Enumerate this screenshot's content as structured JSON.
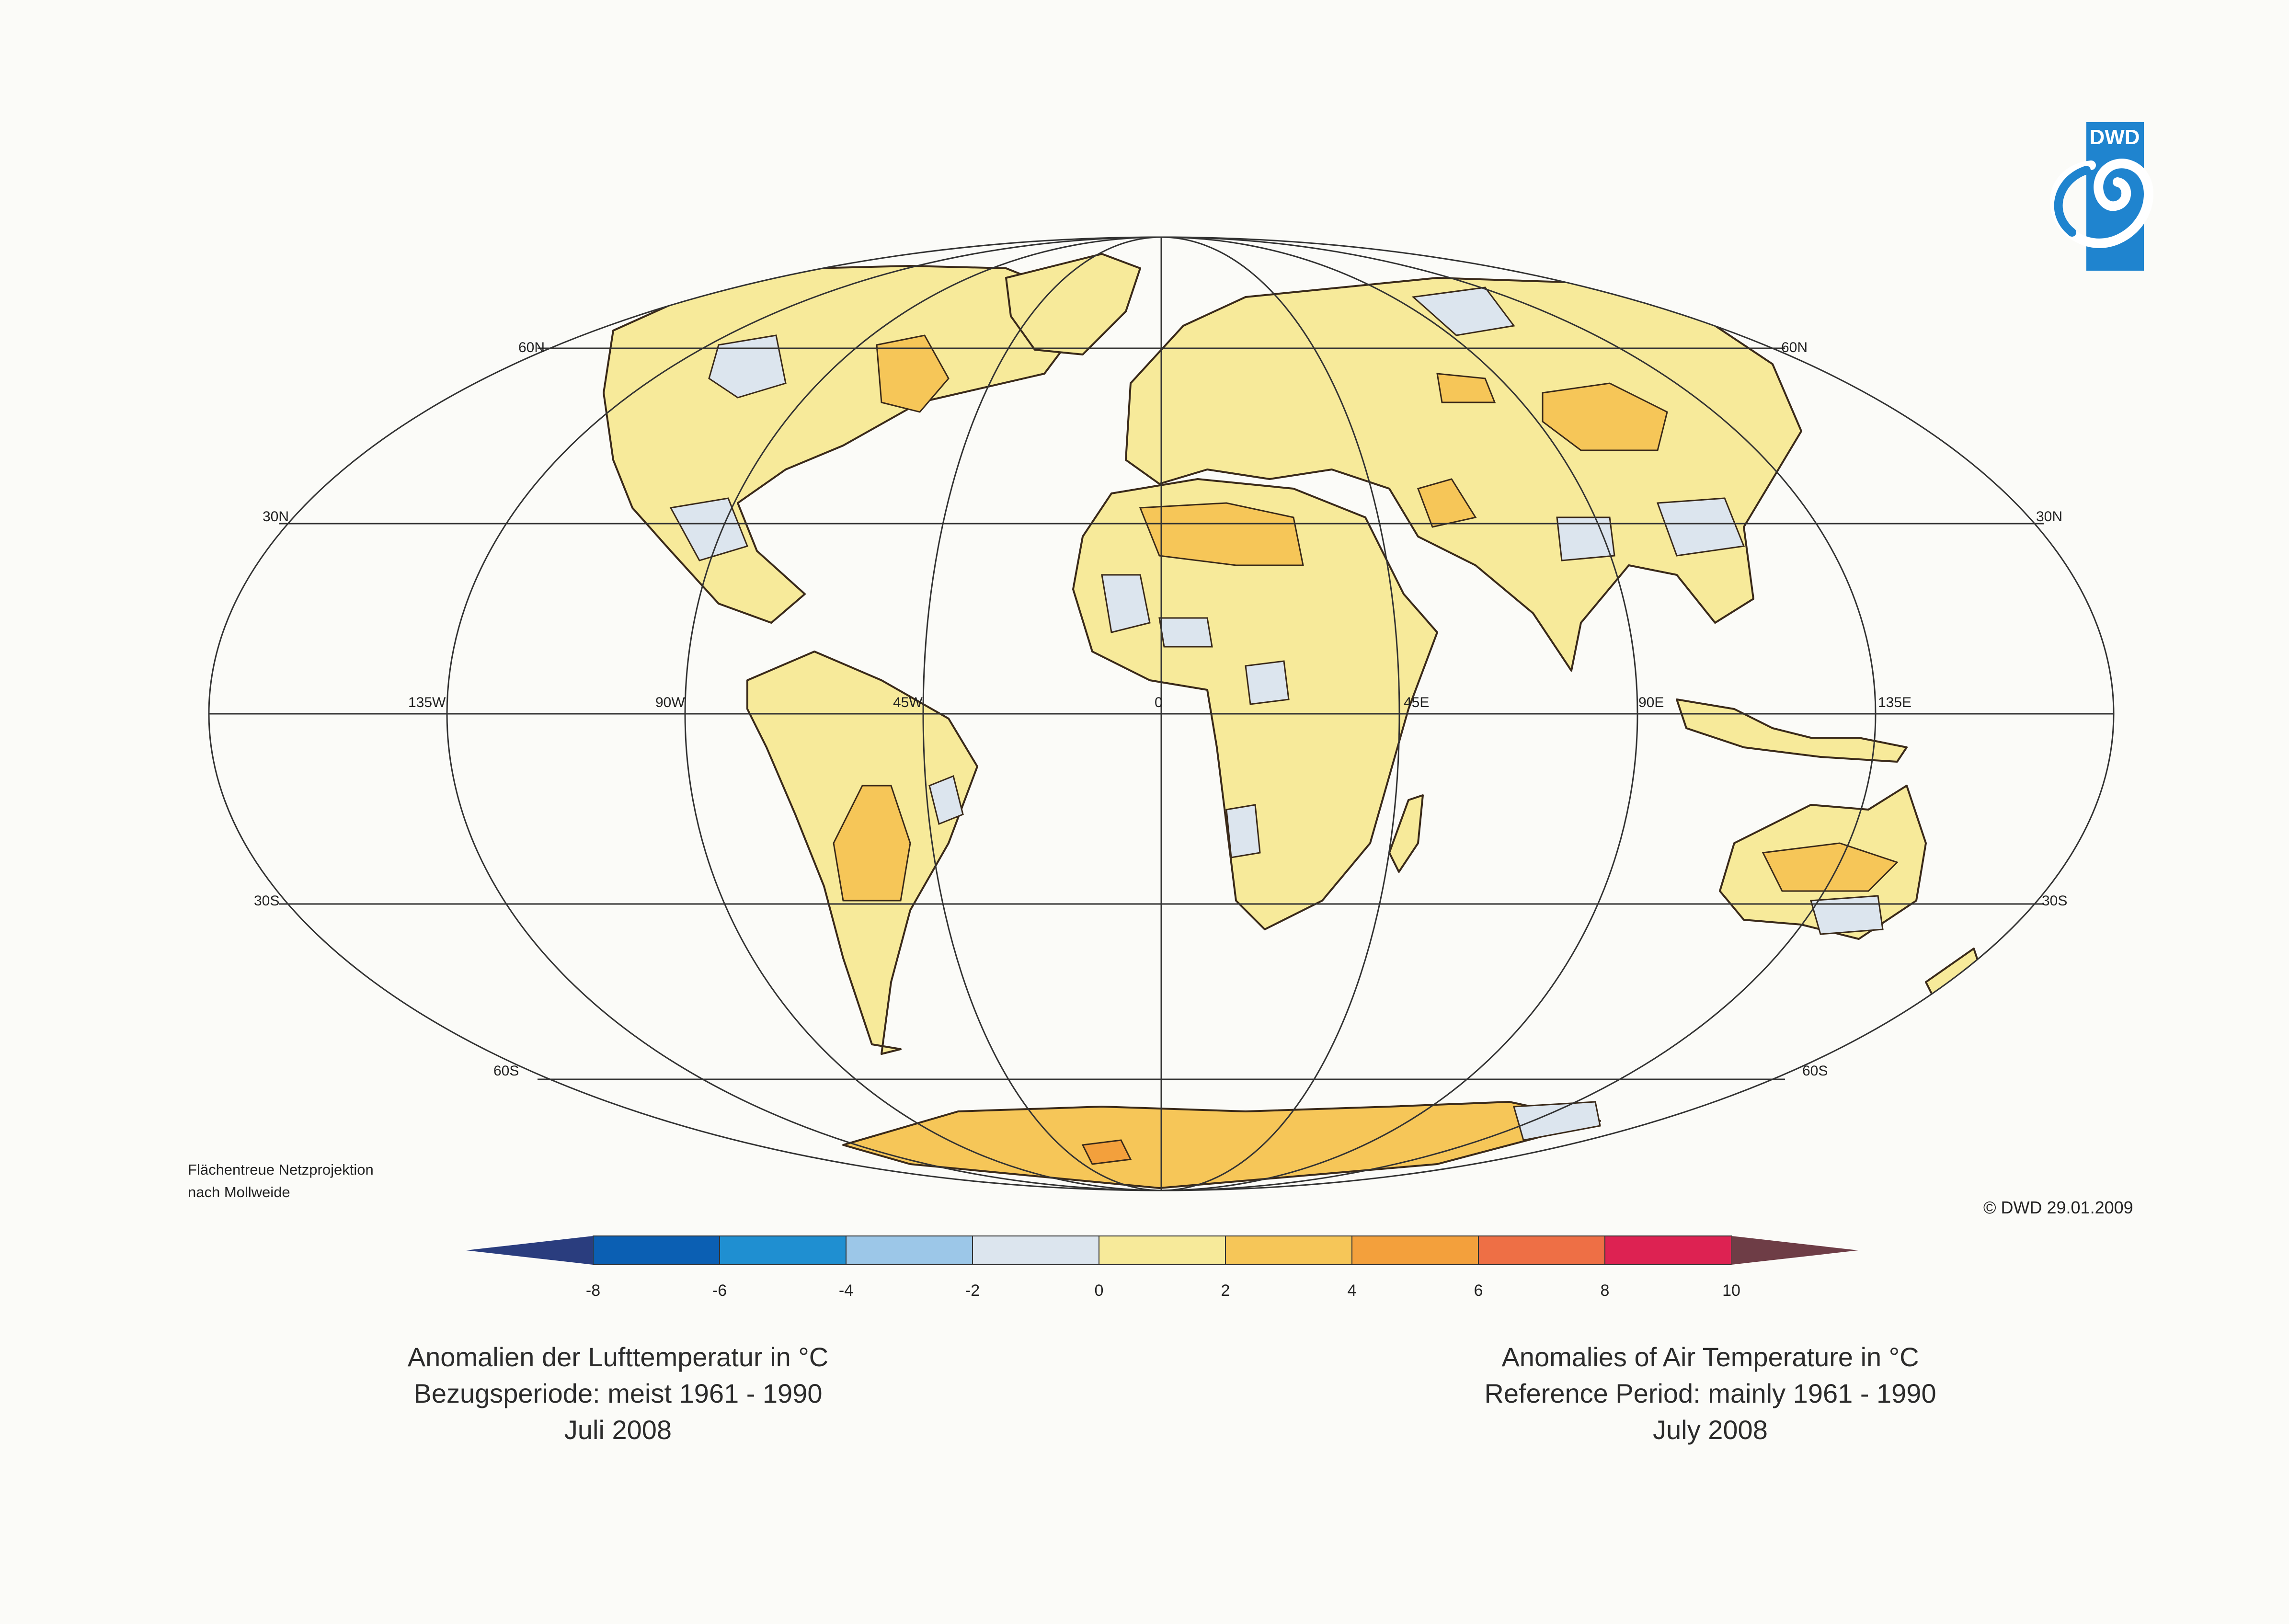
{
  "captions": {
    "german": {
      "line1": "Anomalien der Lufttemperatur in °C",
      "line2": "Bezugsperiode: meist 1961 - 1990",
      "line3": "Juli 2008"
    },
    "english": {
      "line1": "Anomalies of Air Temperature in °C",
      "line2": "Reference Period: mainly 1961 - 1990",
      "line3": "July 2008"
    }
  },
  "projection_note": {
    "line1": "Flächentreue Netzprojektion",
    "line2": "nach Mollweide"
  },
  "copyright": "© DWD 29.01.2009",
  "logo_text": "DWD",
  "grid_labels": {
    "lat_60n": "60N",
    "lat_30n": "30N",
    "lat_30s": "30S",
    "lat_60s": "60S",
    "lon_135w": "135W",
    "lon_90w": "90W",
    "lon_45w": "45W",
    "lon_0": "0",
    "lon_45e": "45E",
    "lon_90e": "90E",
    "lon_135e": "135E"
  },
  "legend": {
    "ticks": [
      "-8",
      "-6",
      "-4",
      "-2",
      "0",
      "2",
      "4",
      "6",
      "8",
      "10"
    ],
    "classes": [
      {
        "range": "< -8",
        "color": "#2a3d7e"
      },
      {
        "range": "-8 to -6",
        "color": "#0b5fb3"
      },
      {
        "range": "-6 to -4",
        "color": "#1f8fd1"
      },
      {
        "range": "-4 to -2",
        "color": "#9cc7e8"
      },
      {
        "range": "-2 to 0",
        "color": "#dce5ee"
      },
      {
        "range": "0 to 2",
        "color": "#f7ea9a"
      },
      {
        "range": "2 to 4",
        "color": "#f6c658"
      },
      {
        "range": "4 to 6",
        "color": "#f3a03c"
      },
      {
        "range": "6 to 8",
        "color": "#ee6f45"
      },
      {
        "range": "8 to 10",
        "color": "#dd2252"
      },
      {
        "range": "> 10",
        "color": "#6e3d46"
      }
    ]
  },
  "colors": {
    "ocean": "#fbfbf8",
    "land_default": "#f7ea9a",
    "warm": "#f6c658",
    "warmer": "#f3a03c",
    "cool": "#dce5ee",
    "logo_blue": "#1f84cf"
  }
}
